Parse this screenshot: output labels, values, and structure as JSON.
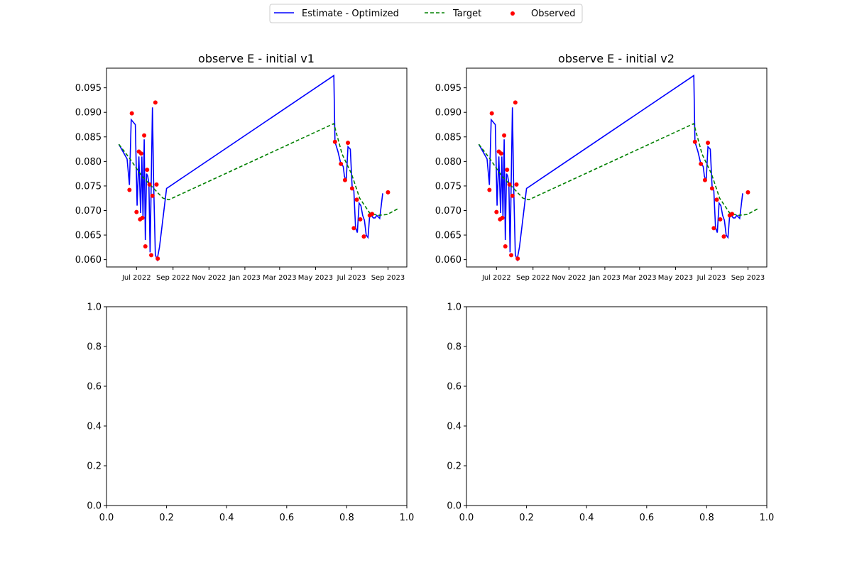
{
  "legend": {
    "items": [
      {
        "label": "Estimate - Optimized",
        "color": "#0000ff",
        "style": "solid-line"
      },
      {
        "label": "Target",
        "color": "#008000",
        "style": "dashed-line"
      },
      {
        "label": "Observed",
        "color": "#ff0000",
        "style": "marker"
      }
    ],
    "placement": "top-center"
  },
  "chart_data": [
    {
      "type": "line",
      "title": "observe E - initial v1",
      "xlabel": "",
      "ylabel": "",
      "x_type": "date",
      "xlim": [
        "2022-05-11",
        "2023-10-03"
      ],
      "ylim": [
        0.0585,
        0.099
      ],
      "x_ticks": [
        {
          "date": "2022-07-01",
          "label": "Jul 2022"
        },
        {
          "date": "2022-09-01",
          "label": "Sep 2022"
        },
        {
          "date": "2022-11-01",
          "label": "Nov 2022"
        },
        {
          "date": "2023-01-01",
          "label": "Jan 2023"
        },
        {
          "date": "2023-03-01",
          "label": "Mar 2023"
        },
        {
          "date": "2023-05-01",
          "label": "May 2023"
        },
        {
          "date": "2023-07-01",
          "label": "Jul 2023"
        },
        {
          "date": "2023-09-01",
          "label": "Sep 2023"
        }
      ],
      "y_ticks": [
        "0.060",
        "0.065",
        "0.070",
        "0.075",
        "0.080",
        "0.085",
        "0.090",
        "0.095"
      ],
      "series": [
        {
          "name": "Estimate - Optimized",
          "style": "line",
          "color": "#0000ff",
          "x": [
            "2022-06-01",
            "2022-06-15",
            "2022-06-19",
            "2022-06-22",
            "2022-06-29",
            "2022-07-02",
            "2022-07-05",
            "2022-07-08",
            "2022-07-10",
            "2022-07-12",
            "2022-07-14",
            "2022-07-16",
            "2022-07-18",
            "2022-07-20",
            "2022-07-22",
            "2022-07-24",
            "2022-07-28",
            "2022-07-30",
            "2022-08-02",
            "2022-08-05",
            "2022-08-09",
            "2022-08-12",
            "2022-08-15",
            "2022-08-18",
            "2022-08-21",
            "2023-06-01",
            "2023-06-03",
            "2023-06-08",
            "2023-06-13",
            "2023-06-17",
            "2023-06-19",
            "2023-06-22",
            "2023-06-25",
            "2023-06-29",
            "2023-07-02",
            "2023-07-05",
            "2023-07-08",
            "2023-07-11",
            "2023-07-14",
            "2023-07-17",
            "2023-07-20",
            "2023-07-23",
            "2023-07-26",
            "2023-07-29",
            "2023-08-01",
            "2023-08-04",
            "2023-08-07",
            "2023-08-10",
            "2023-08-13",
            "2023-08-18",
            "2023-08-23"
          ],
          "y": [
            0.0835,
            0.0805,
            0.0752,
            0.0885,
            0.0875,
            0.071,
            0.081,
            0.0695,
            0.081,
            0.0685,
            0.0845,
            0.064,
            0.0775,
            0.077,
            0.0755,
            0.0615,
            0.091,
            0.0755,
            0.061,
            0.06,
            0.0625,
            0.0655,
            0.0685,
            0.0715,
            0.0745,
            0.0975,
            0.084,
            0.082,
            0.0795,
            0.079,
            0.077,
            0.076,
            0.083,
            0.0825,
            0.075,
            0.074,
            0.0665,
            0.0655,
            0.0715,
            0.071,
            0.069,
            0.068,
            0.065,
            0.0645,
            0.069,
            0.069,
            0.0685,
            0.0685,
            0.069,
            0.0684,
            0.0735
          ]
        },
        {
          "name": "Target",
          "style": "dashed",
          "color": "#008000",
          "x": [
            "2022-06-01",
            "2022-06-20",
            "2022-07-10",
            "2022-07-30",
            "2022-08-15",
            "2022-08-25",
            "2023-06-01",
            "2023-06-15",
            "2023-07-01",
            "2023-07-15",
            "2023-08-01",
            "2023-08-15",
            "2023-08-31",
            "2023-09-20"
          ],
          "y": [
            0.0835,
            0.0805,
            0.077,
            0.0745,
            0.0725,
            0.0722,
            0.0877,
            0.0815,
            0.0775,
            0.0725,
            0.0695,
            0.069,
            0.0692,
            0.0705
          ]
        },
        {
          "name": "Observed",
          "style": "scatter",
          "color": "#ff0000",
          "x": [
            "2022-06-19",
            "2022-06-23",
            "2022-07-01",
            "2022-07-05",
            "2022-07-07",
            "2022-07-09",
            "2022-07-11",
            "2022-07-14",
            "2022-07-16",
            "2022-07-19",
            "2022-07-23",
            "2022-07-26",
            "2022-07-28",
            "2022-08-02",
            "2022-08-04",
            "2022-08-06",
            "2023-06-03",
            "2023-06-13",
            "2023-06-20",
            "2023-06-25",
            "2023-07-02",
            "2023-07-05",
            "2023-07-10",
            "2023-07-16",
            "2023-07-22",
            "2023-08-01",
            "2023-08-05",
            "2023-09-01"
          ],
          "y": [
            0.0742,
            0.0898,
            0.0697,
            0.082,
            0.0682,
            0.0816,
            0.0685,
            0.0853,
            0.0627,
            0.0783,
            0.0753,
            0.0609,
            0.073,
            0.092,
            0.0753,
            0.0602,
            0.084,
            0.0795,
            0.0762,
            0.0838,
            0.0745,
            0.0664,
            0.0722,
            0.0682,
            0.0647,
            0.069,
            0.0693,
            0.0737
          ]
        }
      ]
    },
    {
      "type": "line",
      "title": "observe E - initial v2",
      "xlabel": "",
      "ylabel": "",
      "x_type": "date",
      "xlim": [
        "2022-05-11",
        "2023-10-03"
      ],
      "ylim": [
        0.0585,
        0.099
      ],
      "x_ticks": [
        {
          "date": "2022-07-01",
          "label": "Jul 2022"
        },
        {
          "date": "2022-09-01",
          "label": "Sep 2022"
        },
        {
          "date": "2022-11-01",
          "label": "Nov 2022"
        },
        {
          "date": "2023-01-01",
          "label": "Jan 2023"
        },
        {
          "date": "2023-03-01",
          "label": "Mar 2023"
        },
        {
          "date": "2023-05-01",
          "label": "May 2023"
        },
        {
          "date": "2023-07-01",
          "label": "Jul 2023"
        },
        {
          "date": "2023-09-01",
          "label": "Sep 2023"
        }
      ],
      "y_ticks": [
        "0.060",
        "0.065",
        "0.070",
        "0.075",
        "0.080",
        "0.085",
        "0.090",
        "0.095"
      ],
      "series": [
        {
          "name": "Estimate - Optimized",
          "style": "line",
          "color": "#0000ff",
          "x": [
            "2022-06-01",
            "2022-06-15",
            "2022-06-19",
            "2022-06-22",
            "2022-06-29",
            "2022-07-02",
            "2022-07-05",
            "2022-07-08",
            "2022-07-10",
            "2022-07-12",
            "2022-07-14",
            "2022-07-16",
            "2022-07-18",
            "2022-07-20",
            "2022-07-22",
            "2022-07-24",
            "2022-07-28",
            "2022-07-30",
            "2022-08-02",
            "2022-08-05",
            "2022-08-09",
            "2022-08-12",
            "2022-08-15",
            "2022-08-18",
            "2022-08-21",
            "2023-06-01",
            "2023-06-03",
            "2023-06-08",
            "2023-06-13",
            "2023-06-17",
            "2023-06-19",
            "2023-06-22",
            "2023-06-25",
            "2023-06-29",
            "2023-07-02",
            "2023-07-05",
            "2023-07-08",
            "2023-07-11",
            "2023-07-14",
            "2023-07-17",
            "2023-07-20",
            "2023-07-23",
            "2023-07-26",
            "2023-07-29",
            "2023-08-01",
            "2023-08-04",
            "2023-08-07",
            "2023-08-10",
            "2023-08-13",
            "2023-08-18",
            "2023-08-23"
          ],
          "y": [
            0.0835,
            0.0805,
            0.0752,
            0.0885,
            0.0875,
            0.071,
            0.081,
            0.0695,
            0.081,
            0.0685,
            0.0845,
            0.064,
            0.0775,
            0.077,
            0.0755,
            0.0615,
            0.091,
            0.0755,
            0.061,
            0.06,
            0.0625,
            0.0655,
            0.0685,
            0.0715,
            0.0745,
            0.0975,
            0.084,
            0.082,
            0.0795,
            0.079,
            0.077,
            0.076,
            0.083,
            0.0825,
            0.075,
            0.074,
            0.0665,
            0.0655,
            0.0715,
            0.071,
            0.069,
            0.068,
            0.065,
            0.0645,
            0.069,
            0.069,
            0.0685,
            0.0685,
            0.069,
            0.0684,
            0.0735
          ]
        },
        {
          "name": "Target",
          "style": "dashed",
          "color": "#008000",
          "x": [
            "2022-06-01",
            "2022-06-20",
            "2022-07-10",
            "2022-07-30",
            "2022-08-15",
            "2022-08-25",
            "2023-06-01",
            "2023-06-15",
            "2023-07-01",
            "2023-07-15",
            "2023-08-01",
            "2023-08-15",
            "2023-08-31",
            "2023-09-20"
          ],
          "y": [
            0.0835,
            0.0805,
            0.077,
            0.0745,
            0.0725,
            0.0722,
            0.0877,
            0.0815,
            0.0775,
            0.0725,
            0.0695,
            0.069,
            0.0692,
            0.0705
          ]
        },
        {
          "name": "Observed",
          "style": "scatter",
          "color": "#ff0000",
          "x": [
            "2022-06-19",
            "2022-06-23",
            "2022-07-01",
            "2022-07-05",
            "2022-07-07",
            "2022-07-09",
            "2022-07-11",
            "2022-07-14",
            "2022-07-16",
            "2022-07-19",
            "2022-07-23",
            "2022-07-26",
            "2022-07-28",
            "2022-08-02",
            "2022-08-04",
            "2022-08-06",
            "2023-06-03",
            "2023-06-13",
            "2023-06-20",
            "2023-06-25",
            "2023-07-02",
            "2023-07-05",
            "2023-07-10",
            "2023-07-16",
            "2023-07-22",
            "2023-08-01",
            "2023-08-05",
            "2023-09-01"
          ],
          "y": [
            0.0742,
            0.0898,
            0.0697,
            0.082,
            0.0682,
            0.0816,
            0.0685,
            0.0853,
            0.0627,
            0.0783,
            0.0753,
            0.0609,
            0.073,
            0.092,
            0.0753,
            0.0602,
            0.084,
            0.0795,
            0.0762,
            0.0838,
            0.0745,
            0.0664,
            0.0722,
            0.0682,
            0.0647,
            0.069,
            0.0693,
            0.0737
          ]
        }
      ]
    },
    {
      "type": "line",
      "title": "",
      "xlabel": "",
      "ylabel": "",
      "xlim": [
        0,
        1
      ],
      "ylim": [
        0,
        1
      ],
      "x_ticks": [
        "0.0",
        "0.2",
        "0.4",
        "0.6",
        "0.8",
        "1.0"
      ],
      "y_ticks": [
        "0.0",
        "0.2",
        "0.4",
        "0.6",
        "0.8",
        "1.0"
      ],
      "series": []
    },
    {
      "type": "line",
      "title": "",
      "xlabel": "",
      "ylabel": "",
      "xlim": [
        0,
        1
      ],
      "ylim": [
        0,
        1
      ],
      "x_ticks": [
        "0.0",
        "0.2",
        "0.4",
        "0.6",
        "0.8",
        "1.0"
      ],
      "y_ticks": [
        "0.0",
        "0.2",
        "0.4",
        "0.6",
        "0.8",
        "1.0"
      ],
      "series": []
    }
  ]
}
